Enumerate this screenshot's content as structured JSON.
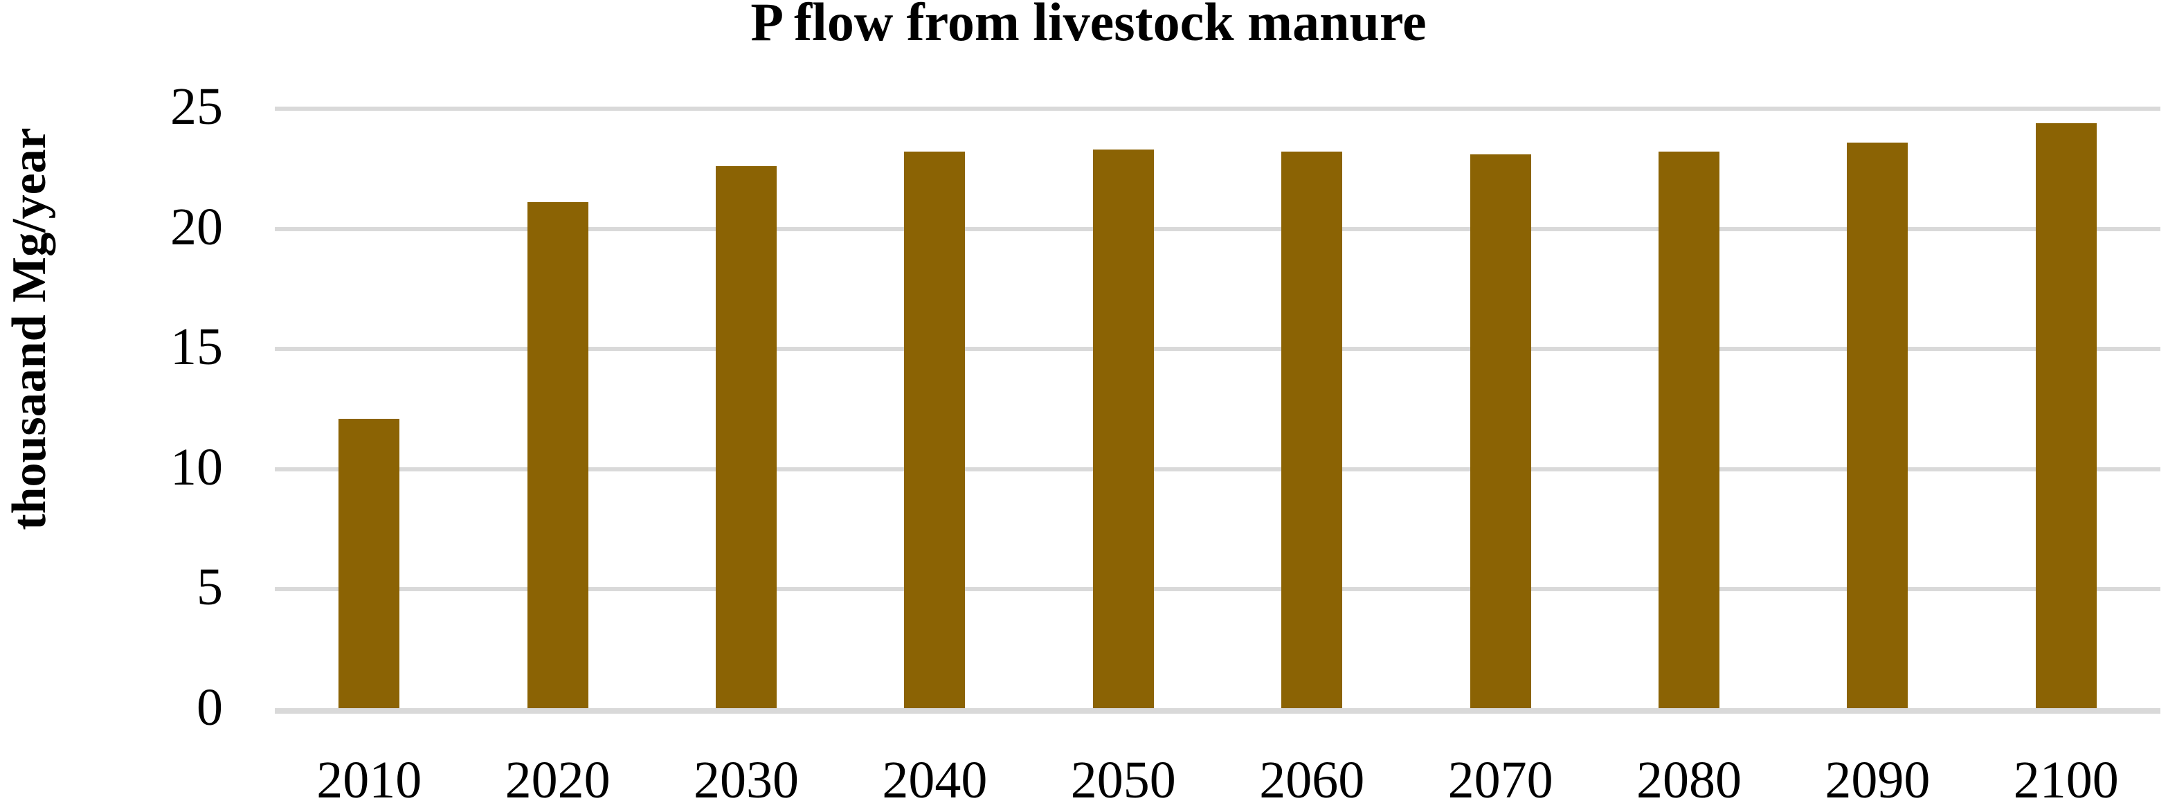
{
  "chart_data": {
    "type": "bar",
    "title": "P flow from livestock manure",
    "ylabel": "thousaand Mg/year",
    "xlabel": "",
    "categories": [
      "2010",
      "2020",
      "2030",
      "2040",
      "2050",
      "2060",
      "2070",
      "2080",
      "2090",
      "2100"
    ],
    "values": [
      12.1,
      21.1,
      22.6,
      23.2,
      23.3,
      23.2,
      23.1,
      23.2,
      23.6,
      24.4
    ],
    "ylim": [
      0,
      25
    ],
    "yticks": [
      0,
      5,
      10,
      15,
      20,
      25
    ],
    "grid": "horizontal-gridlines-on",
    "legend": "none",
    "colors": {
      "bar": "#8B6304",
      "gridline": "#D9D9D9",
      "text": "#000000",
      "background": "#FFFFFF"
    }
  }
}
